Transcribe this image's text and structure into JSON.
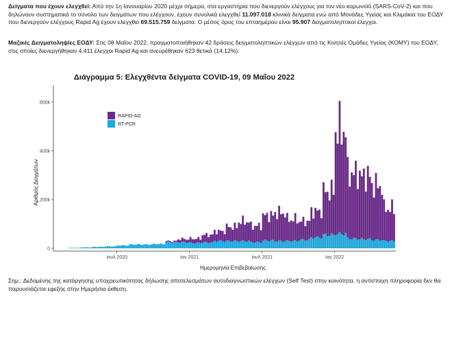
{
  "text": {
    "p1": [
      {
        "t": "Δείγματα που έχουν ελεγχθεί:",
        "b": true
      },
      {
        "t": " Από την 1η Ιανουαρίου 2020 μέχρι σήμερα, στα εργαστήρια που διενεργούν ελέγχους για τον νέο κορωνοϊό (SARS-CoV-2) και που δηλώνουν συστηματικά το σύνολο των δειγμάτων που ελέγχουν, έχουν συνολικά ελεγχθεί "
      },
      {
        "t": "11.097.018",
        "b": true
      },
      {
        "t": " κλινικά δείγματα ενώ από Μονάδες Υγείας και Κλιμάκια του ΕΟΔΥ που διενεργούν ελέγχους Rapid Ag έχουν ελεγχθεί "
      },
      {
        "t": "69.515.759",
        "b": true
      },
      {
        "t": " δείγματα.  Ο μέσος όρος του επταημέρου είναι "
      },
      {
        "t": "95.907",
        "b": true
      },
      {
        "t": " δειγματοληπτικοί έλεγχοι."
      }
    ],
    "p2": [
      {
        "t": "Μαζικές Δειγματοληψίες ΕΟΔΥ:",
        "b": true
      },
      {
        "t": " Στις 08 Μαΐου 2022, πραγματοποιήθηκαν 42 δράσεις δειγματοληπτικών ελέγχων από τις Κινητές Ομάδες Υγείας (ΚΟΜΥ) του ΕΟΔΥ, στις οποίες διενεργήθηκαν 4.411 έλεγχοι Rapid Ag και ανευρέθηκαν 623 θετικά (14.12%)."
      }
    ],
    "note": [
      {
        "t": "Σημ.: Δεδομένης της κατάργησης υποχρεωτικότητας δήλωσης αποτελεσμάτων αυτοδιαγνωστικών ελέγχων (Self Test) στην κοινότητα, η αντίστοιχη πληροφορία δεν θα παρουσιάζεται εφεξής στην Ημερήσια έκθεση."
      }
    ]
  },
  "chart_data": {
    "type": "bar",
    "stacked": true,
    "title": "Διάγραμμα 5: Ελεγχθέντα δείγματα COVID-19, 09 Μαΐου 2022",
    "xlabel": "Ημερομηνία Επιβεβαίωσης",
    "ylabel": "Αριθμός Δειγμάτων",
    "x_range": [
      "2020-03",
      "2022-05"
    ],
    "ylim": [
      0,
      670000
    ],
    "x_tick_labels": [
      "Ιουλ 2020",
      "Ιαν 2021",
      "Ιουλ 2021",
      "Ιαν 2022"
    ],
    "y_tick_values": [
      0,
      200000,
      400000,
      600000
    ],
    "y_tick_labels": [
      "0",
      "200k",
      "400k",
      "600k"
    ],
    "legend": {
      "position": "top-left",
      "entries": [
        "RAPID-AG",
        "RT-PCR"
      ]
    },
    "grid": false,
    "x": [
      "2020-03",
      "2020-04",
      "2020-05",
      "2020-06",
      "2020-07",
      "2020-08",
      "2020-09",
      "2020-10",
      "2020-11",
      "2020-12",
      "2021-01",
      "2021-02",
      "2021-03",
      "2021-04",
      "2021-05",
      "2021-06",
      "2021-07",
      "2021-08",
      "2021-09",
      "2021-10",
      "2021-11",
      "2021-12",
      "2022-01",
      "2022-02",
      "2022-03",
      "2022-04",
      "2022-05"
    ],
    "series": [
      {
        "name": "RT-PCR",
        "color": "#1fa7dc",
        "values": [
          2000,
          4000,
          6000,
          8000,
          12000,
          16000,
          16000,
          18000,
          25000,
          25000,
          22000,
          24000,
          30000,
          30000,
          30000,
          25000,
          32000,
          30000,
          30000,
          35000,
          45000,
          55000,
          60000,
          40000,
          38000,
          35000,
          30000
        ]
      },
      {
        "name": "RAPID-AG",
        "color": "#6a2a8a",
        "values": [
          0,
          0,
          0,
          0,
          0,
          0,
          0,
          0,
          5000,
          15000,
          20000,
          35000,
          45000,
          65000,
          90000,
          75000,
          115000,
          130000,
          100000,
          85000,
          120000,
          200000,
          480000,
          300000,
          290000,
          250000,
          150000
        ]
      }
    ]
  }
}
